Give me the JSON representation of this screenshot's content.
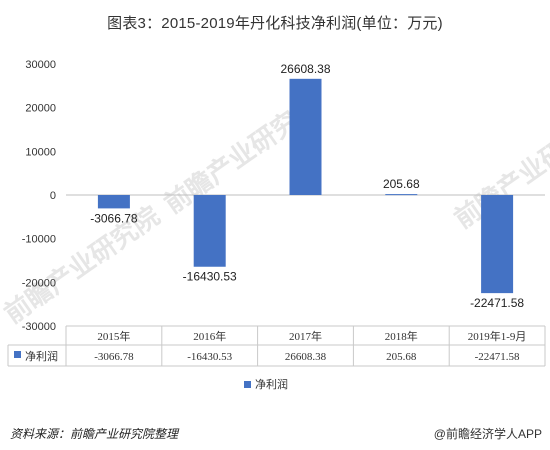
{
  "title": "图表3：2015-2019年丹化科技净利润(单位：万元)",
  "chart_data": {
    "type": "bar",
    "categories": [
      "2015年",
      "2016年",
      "2017年",
      "2018年",
      "2019年1-9月"
    ],
    "series": [
      {
        "name": "净利润",
        "values": [
          -3066.78,
          -16430.53,
          26608.38,
          205.68,
          -22471.58
        ],
        "color": "#4472c4"
      }
    ],
    "data_labels": [
      "-3066.78",
      "-16430.53",
      "26608.38",
      "205.68",
      "-22471.58"
    ],
    "ylim": [
      -30000,
      30000
    ],
    "yticks": [
      30000,
      20000,
      10000,
      0,
      -10000,
      -20000,
      -30000
    ],
    "ytick_labels": [
      "30000",
      "20000",
      "10000",
      "0",
      "-10000",
      "-20000",
      "-30000"
    ],
    "data_table": true,
    "legend_position": "bottom"
  },
  "source": "资料来源：前瞻产业研究院整理",
  "brand": "@前瞻经济学人APP",
  "watermark": "前瞻产业研究院"
}
